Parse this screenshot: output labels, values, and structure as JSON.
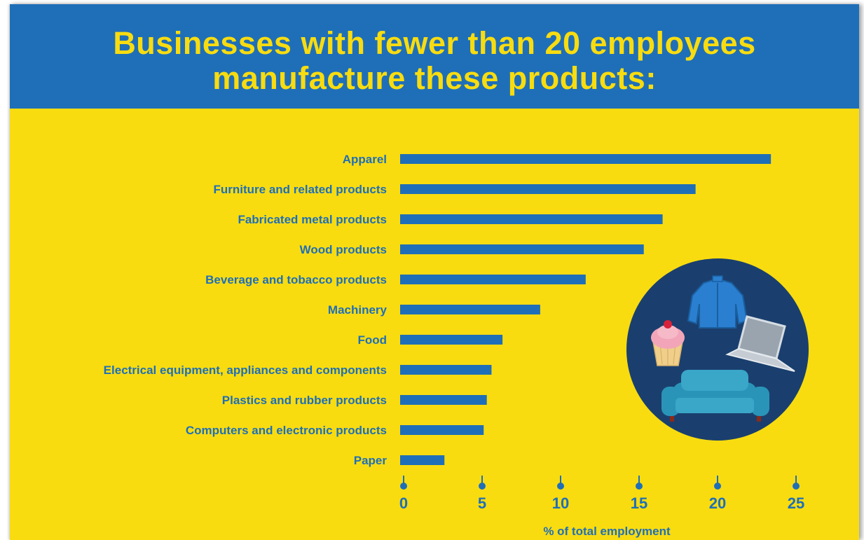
{
  "colors": {
    "background": "#f8dc10",
    "header": "#1f6fb8",
    "bar": "#1f6fb8",
    "circle": "#1a3f6e"
  },
  "header": {
    "title_line1": "Businesses with fewer than 20 employees",
    "title_line2": "manufacture these products:"
  },
  "illustration": {
    "icons": [
      "jacket-icon",
      "cupcake-icon",
      "laptop-icon",
      "sofa-icon"
    ]
  },
  "chart_data": {
    "type": "bar",
    "orientation": "horizontal",
    "categories": [
      "Apparel",
      "Furniture and related products",
      "Fabricated metal products",
      "Wood products",
      "Beverage and tobacco products",
      "Machinery",
      "Food",
      "Electrical equipment, appliances and components",
      "Plastics and rubber products",
      "Computers and electronic products",
      "Paper"
    ],
    "values": [
      23.4,
      18.6,
      16.5,
      15.3,
      11.6,
      8.7,
      6.3,
      5.6,
      5.3,
      5.1,
      2.6
    ],
    "xlabel": "% of total employment",
    "ylabel": "",
    "xlim": [
      0,
      25
    ],
    "xticks": [
      "0",
      "5",
      "10",
      "15",
      "20",
      "25"
    ],
    "grid": false,
    "legend": "none"
  }
}
